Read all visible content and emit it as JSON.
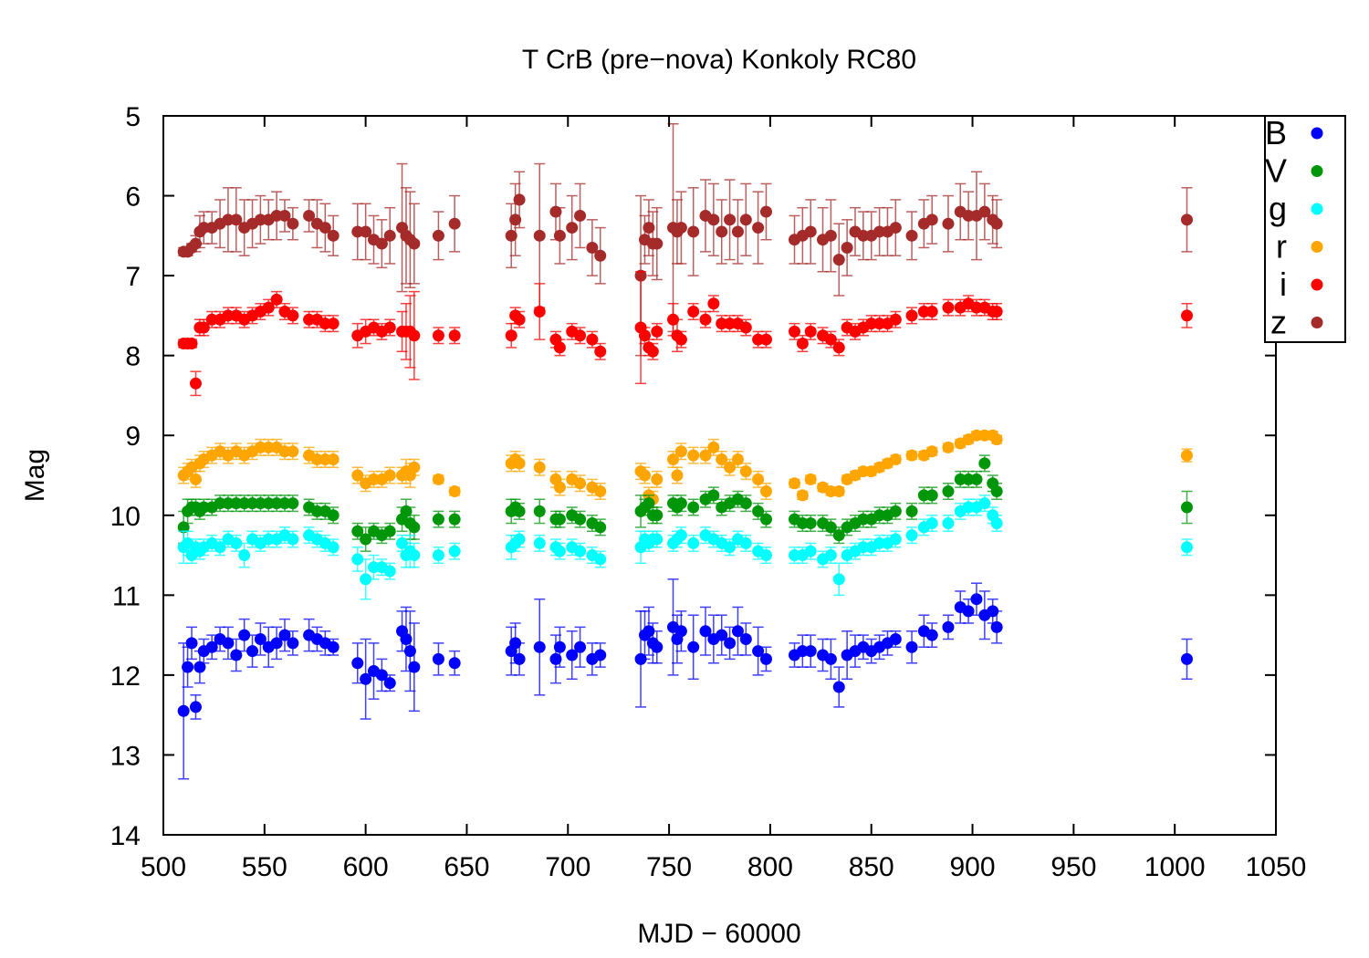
{
  "chart_data": {
    "type": "scatter",
    "title": "T CrB (pre−nova) Konkoly RC80",
    "xlabel": "MJD − 60000",
    "ylabel": "Mag",
    "xlim": [
      500,
      1050
    ],
    "ylim": [
      5,
      14
    ],
    "y_inverted": true,
    "grid": false,
    "legend_position": "top-right",
    "x_ticks": [
      "500",
      "550",
      "600",
      "650",
      "700",
      "750",
      "800",
      "850",
      "900",
      "950",
      "1000",
      "1050"
    ],
    "y_ticks": [
      "5",
      "6",
      "7",
      "8",
      "9",
      "10",
      "11",
      "12",
      "13",
      "14"
    ],
    "x": [
      510,
      512,
      514,
      516,
      518,
      520,
      524,
      528,
      532,
      536,
      540,
      544,
      548,
      552,
      556,
      560,
      564,
      572,
      576,
      580,
      584,
      596,
      600,
      604,
      608,
      612,
      618,
      620,
      622,
      624,
      636,
      644,
      672,
      674,
      676,
      686,
      694,
      696,
      702,
      706,
      712,
      716,
      736,
      738,
      740,
      742,
      744,
      752,
      754,
      756,
      762,
      768,
      772,
      776,
      780,
      784,
      788,
      794,
      798,
      812,
      816,
      820,
      826,
      830,
      834,
      838,
      842,
      846,
      850,
      854,
      858,
      862,
      870,
      876,
      880,
      888,
      894,
      898,
      902,
      906,
      910,
      912,
      1006
    ],
    "series": [
      {
        "name": "B",
        "color": "#0000ff",
        "values": [
          12.45,
          11.9,
          11.6,
          12.4,
          11.9,
          11.7,
          11.65,
          11.55,
          11.6,
          11.75,
          11.5,
          11.7,
          11.55,
          11.65,
          11.6,
          11.5,
          11.6,
          11.5,
          11.55,
          11.6,
          11.65,
          11.85,
          12.05,
          11.95,
          12.0,
          12.1,
          11.45,
          11.55,
          11.7,
          11.9,
          11.8,
          11.85,
          11.7,
          11.6,
          11.8,
          11.65,
          11.8,
          11.65,
          11.75,
          11.65,
          11.8,
          11.75,
          11.8,
          11.5,
          11.45,
          11.6,
          11.65,
          11.4,
          11.55,
          11.45,
          11.65,
          11.45,
          11.55,
          11.5,
          11.6,
          11.45,
          11.55,
          11.7,
          11.8,
          11.75,
          11.7,
          11.7,
          11.75,
          11.8,
          12.15,
          11.75,
          11.7,
          11.65,
          11.7,
          11.65,
          11.6,
          11.55,
          11.65,
          11.45,
          11.5,
          11.4,
          11.15,
          11.2,
          11.05,
          11.25,
          11.2,
          11.4,
          11.8
        ],
        "errors": [
          0.85,
          0.25,
          0.2,
          0.15,
          0.2,
          0.15,
          0.15,
          0.15,
          0.2,
          0.2,
          0.2,
          0.2,
          0.2,
          0.25,
          0.2,
          0.2,
          0.15,
          0.2,
          0.15,
          0.15,
          0.1,
          0.25,
          0.5,
          0.35,
          0.2,
          0.1,
          0.25,
          0.4,
          0.5,
          0.55,
          0.2,
          0.15,
          0.3,
          0.25,
          0.2,
          0.6,
          0.3,
          0.25,
          0.3,
          0.25,
          0.2,
          0.15,
          0.6,
          0.3,
          0.3,
          0.25,
          0.2,
          0.6,
          0.3,
          0.25,
          0.4,
          0.3,
          0.3,
          0.25,
          0.2,
          0.3,
          0.2,
          0.3,
          0.15,
          0.15,
          0.2,
          0.2,
          0.2,
          0.25,
          0.25,
          0.3,
          0.2,
          0.15,
          0.15,
          0.15,
          0.15,
          0.1,
          0.2,
          0.2,
          0.15,
          0.15,
          0.2,
          0.15,
          0.2,
          0.3,
          0.15,
          0.2,
          0.25
        ]
      },
      {
        "name": "V",
        "color": "#00960a",
        "values": [
          10.15,
          9.95,
          9.9,
          9.9,
          9.95,
          9.9,
          9.9,
          9.85,
          9.85,
          9.85,
          9.85,
          9.85,
          9.85,
          9.85,
          9.85,
          9.85,
          9.85,
          9.9,
          9.95,
          9.95,
          10.0,
          10.2,
          10.3,
          10.2,
          10.25,
          10.2,
          10.05,
          9.95,
          10.1,
          10.15,
          10.05,
          10.05,
          9.95,
          9.9,
          9.95,
          9.95,
          10.05,
          10.05,
          10.0,
          10.05,
          10.1,
          10.15,
          9.95,
          9.9,
          9.85,
          10.0,
          10.0,
          9.85,
          9.9,
          9.85,
          9.9,
          9.8,
          9.75,
          9.9,
          9.85,
          9.8,
          9.85,
          9.95,
          10.05,
          10.05,
          10.1,
          10.1,
          10.1,
          10.15,
          10.25,
          10.15,
          10.1,
          10.05,
          10.05,
          10.0,
          10.0,
          9.95,
          9.95,
          9.75,
          9.75,
          9.7,
          9.55,
          9.55,
          9.55,
          9.35,
          9.6,
          9.7,
          9.9
        ],
        "errors": [
          0.2,
          0.15,
          0.1,
          0.1,
          0.1,
          0.1,
          0.1,
          0.1,
          0.1,
          0.1,
          0.1,
          0.1,
          0.1,
          0.1,
          0.1,
          0.1,
          0.1,
          0.1,
          0.1,
          0.1,
          0.1,
          0.1,
          0.15,
          0.1,
          0.1,
          0.1,
          0.15,
          0.15,
          0.2,
          0.15,
          0.1,
          0.1,
          0.15,
          0.1,
          0.1,
          0.15,
          0.1,
          0.1,
          0.1,
          0.1,
          0.1,
          0.1,
          0.2,
          0.1,
          0.1,
          0.1,
          0.1,
          0.1,
          0.1,
          0.1,
          0.1,
          0.1,
          0.1,
          0.1,
          0.1,
          0.1,
          0.1,
          0.1,
          0.1,
          0.1,
          0.1,
          0.1,
          0.1,
          0.1,
          0.1,
          0.1,
          0.1,
          0.1,
          0.1,
          0.1,
          0.1,
          0.1,
          0.1,
          0.1,
          0.1,
          0.1,
          0.1,
          0.1,
          0.1,
          0.1,
          0.1,
          0.1,
          0.2
        ]
      },
      {
        "name": "g",
        "color": "#00ffff",
        "values": [
          10.4,
          10.35,
          10.5,
          10.4,
          10.45,
          10.4,
          10.35,
          10.4,
          10.3,
          10.35,
          10.5,
          10.3,
          10.35,
          10.3,
          10.3,
          10.25,
          10.3,
          10.25,
          10.3,
          10.35,
          10.4,
          10.55,
          10.8,
          10.65,
          10.65,
          10.7,
          10.35,
          10.5,
          10.45,
          10.5,
          10.5,
          10.45,
          10.4,
          10.35,
          10.3,
          10.35,
          10.4,
          10.45,
          10.4,
          10.45,
          10.5,
          10.55,
          10.4,
          10.3,
          10.35,
          10.3,
          10.3,
          10.35,
          10.3,
          10.25,
          10.35,
          10.25,
          10.3,
          10.35,
          10.4,
          10.3,
          10.35,
          10.45,
          10.5,
          10.5,
          10.5,
          10.45,
          10.55,
          10.5,
          10.8,
          10.5,
          10.45,
          10.4,
          10.4,
          10.35,
          10.35,
          10.3,
          10.25,
          10.15,
          10.1,
          10.1,
          9.95,
          9.9,
          9.9,
          9.85,
          10.0,
          10.1,
          10.4
        ],
        "errors": [
          0.2,
          0.15,
          0.1,
          0.1,
          0.1,
          0.1,
          0.1,
          0.1,
          0.1,
          0.1,
          0.15,
          0.1,
          0.1,
          0.1,
          0.1,
          0.1,
          0.1,
          0.1,
          0.1,
          0.1,
          0.1,
          0.15,
          0.25,
          0.15,
          0.1,
          0.1,
          0.1,
          0.15,
          0.2,
          0.15,
          0.1,
          0.1,
          0.15,
          0.1,
          0.1,
          0.1,
          0.1,
          0.1,
          0.1,
          0.1,
          0.1,
          0.1,
          0.2,
          0.1,
          0.1,
          0.1,
          0.1,
          0.1,
          0.1,
          0.1,
          0.1,
          0.1,
          0.1,
          0.1,
          0.1,
          0.1,
          0.1,
          0.1,
          0.1,
          0.1,
          0.1,
          0.1,
          0.1,
          0.1,
          0.2,
          0.1,
          0.1,
          0.1,
          0.1,
          0.1,
          0.1,
          0.1,
          0.1,
          0.1,
          0.1,
          0.1,
          0.1,
          0.1,
          0.1,
          0.1,
          0.1,
          0.1,
          0.1
        ]
      },
      {
        "name": "r",
        "color": "#ffa500",
        "values": [
          9.5,
          9.45,
          9.4,
          9.55,
          9.35,
          9.3,
          9.25,
          9.2,
          9.25,
          9.2,
          9.25,
          9.2,
          9.15,
          9.15,
          9.15,
          9.2,
          9.2,
          9.25,
          9.3,
          9.3,
          9.3,
          9.5,
          9.6,
          9.55,
          9.55,
          9.5,
          9.5,
          9.45,
          9.5,
          9.4,
          9.55,
          9.7,
          9.35,
          9.3,
          9.35,
          9.4,
          9.55,
          9.65,
          9.55,
          9.6,
          9.65,
          9.7,
          9.45,
          9.5,
          9.75,
          9.8,
          9.55,
          9.3,
          9.5,
          9.2,
          9.25,
          9.25,
          9.15,
          9.3,
          9.4,
          9.3,
          9.45,
          9.55,
          9.7,
          9.6,
          9.75,
          9.55,
          9.65,
          9.7,
          9.7,
          9.55,
          9.5,
          9.45,
          9.45,
          9.4,
          9.35,
          9.3,
          9.25,
          9.25,
          9.2,
          9.15,
          9.1,
          9.05,
          9.0,
          9.0,
          9.0,
          9.05,
          9.25
        ],
        "errors": [
          0.1,
          0.1,
          0.1,
          0.1,
          0.1,
          0.1,
          0.1,
          0.1,
          0.1,
          0.1,
          0.1,
          0.1,
          0.1,
          0.1,
          0.1,
          0.1,
          0.1,
          0.1,
          0.1,
          0.1,
          0.1,
          0.1,
          0.1,
          0.1,
          0.1,
          0.1,
          0.1,
          0.15,
          0.15,
          0.1,
          0.05,
          0.05,
          0.1,
          0.1,
          0.1,
          0.1,
          0.1,
          0.1,
          0.1,
          0.1,
          0.1,
          0.1,
          0.1,
          0.1,
          0.1,
          0.1,
          0.1,
          0.1,
          0.1,
          0.1,
          0.1,
          0.1,
          0.1,
          0.1,
          0.1,
          0.1,
          0.1,
          0.1,
          0.1,
          0.05,
          0.05,
          0.05,
          0.05,
          0.05,
          0.05,
          0.05,
          0.05,
          0.05,
          0.05,
          0.05,
          0.05,
          0.05,
          0.05,
          0.05,
          0.05,
          0.05,
          0.05,
          0.05,
          0.05,
          0.05,
          0.05,
          0.05,
          0.08
        ]
      },
      {
        "name": "i",
        "color": "#ff0000",
        "values": [
          7.85,
          7.85,
          7.85,
          8.35,
          7.65,
          7.65,
          7.55,
          7.55,
          7.5,
          7.5,
          7.55,
          7.5,
          7.45,
          7.4,
          7.3,
          7.45,
          7.5,
          7.55,
          7.55,
          7.6,
          7.6,
          7.75,
          7.7,
          7.65,
          7.7,
          7.65,
          7.7,
          7.7,
          7.7,
          7.75,
          7.75,
          7.75,
          7.75,
          7.5,
          7.55,
          7.45,
          7.8,
          7.9,
          7.7,
          7.75,
          7.8,
          7.95,
          7.65,
          7.75,
          7.9,
          7.95,
          7.7,
          7.55,
          7.75,
          7.8,
          7.45,
          7.55,
          7.35,
          7.6,
          7.6,
          7.6,
          7.65,
          7.8,
          7.8,
          7.7,
          7.85,
          7.7,
          7.75,
          7.8,
          7.9,
          7.65,
          7.7,
          7.65,
          7.6,
          7.6,
          7.6,
          7.55,
          7.5,
          7.45,
          7.45,
          7.4,
          7.4,
          7.35,
          7.4,
          7.4,
          7.45,
          7.45,
          7.5
        ],
        "errors": [
          0.05,
          0.05,
          0.05,
          0.15,
          0.1,
          0.1,
          0.1,
          0.1,
          0.1,
          0.1,
          0.1,
          0.1,
          0.1,
          0.1,
          0.1,
          0.1,
          0.1,
          0.1,
          0.1,
          0.1,
          0.1,
          0.15,
          0.15,
          0.1,
          0.1,
          0.1,
          0.25,
          0.35,
          0.45,
          0.55,
          0.1,
          0.1,
          0.15,
          0.1,
          0.1,
          0.35,
          0.1,
          0.1,
          0.1,
          0.1,
          0.1,
          0.1,
          0.7,
          0.1,
          0.1,
          0.1,
          0.1,
          0.2,
          0.2,
          0.1,
          0.1,
          0.1,
          0.1,
          0.1,
          0.1,
          0.1,
          0.1,
          0.1,
          0.1,
          0.1,
          0.1,
          0.1,
          0.1,
          0.1,
          0.1,
          0.1,
          0.1,
          0.1,
          0.1,
          0.1,
          0.1,
          0.1,
          0.1,
          0.1,
          0.1,
          0.1,
          0.1,
          0.1,
          0.1,
          0.1,
          0.1,
          0.1,
          0.15
        ]
      },
      {
        "name": "z",
        "color": "#a52a2a",
        "values": [
          6.7,
          6.7,
          6.65,
          6.6,
          6.45,
          6.4,
          6.4,
          6.35,
          6.3,
          6.3,
          6.4,
          6.35,
          6.3,
          6.3,
          6.25,
          6.25,
          6.35,
          6.25,
          6.35,
          6.4,
          6.5,
          6.45,
          6.45,
          6.55,
          6.6,
          6.5,
          6.4,
          6.5,
          6.55,
          6.6,
          6.5,
          6.35,
          6.5,
          6.3,
          6.05,
          6.5,
          6.2,
          6.5,
          6.4,
          6.25,
          6.65,
          6.75,
          7.0,
          6.55,
          6.4,
          6.6,
          6.6,
          6.4,
          6.45,
          6.4,
          6.45,
          6.25,
          6.3,
          6.45,
          6.3,
          6.45,
          6.3,
          6.4,
          6.2,
          6.55,
          6.5,
          6.45,
          6.55,
          6.5,
          6.8,
          6.65,
          6.45,
          6.5,
          6.5,
          6.45,
          6.45,
          6.4,
          6.5,
          6.35,
          6.3,
          6.35,
          6.2,
          6.25,
          6.25,
          6.2,
          6.3,
          6.35,
          6.3
        ],
        "errors": [
          0.05,
          0.05,
          0.05,
          0.1,
          0.2,
          0.2,
          0.2,
          0.3,
          0.4,
          0.4,
          0.35,
          0.3,
          0.3,
          0.25,
          0.3,
          0.2,
          0.2,
          0.2,
          0.3,
          0.3,
          0.25,
          0.35,
          0.35,
          0.3,
          0.3,
          0.35,
          0.8,
          0.6,
          0.6,
          0.5,
          0.3,
          0.35,
          0.4,
          0.45,
          0.35,
          0.9,
          0.35,
          0.35,
          0.4,
          0.4,
          0.35,
          0.35,
          1.0,
          0.3,
          0.35,
          0.4,
          0.45,
          1.3,
          0.4,
          0.45,
          0.55,
          0.45,
          0.45,
          0.4,
          0.5,
          0.4,
          0.45,
          0.45,
          0.35,
          0.3,
          0.35,
          0.4,
          0.4,
          0.45,
          0.45,
          0.35,
          0.3,
          0.3,
          0.3,
          0.3,
          0.3,
          0.35,
          0.3,
          0.3,
          0.3,
          0.35,
          0.35,
          0.3,
          0.55,
          0.35,
          0.3,
          0.3,
          0.4
        ]
      }
    ]
  }
}
